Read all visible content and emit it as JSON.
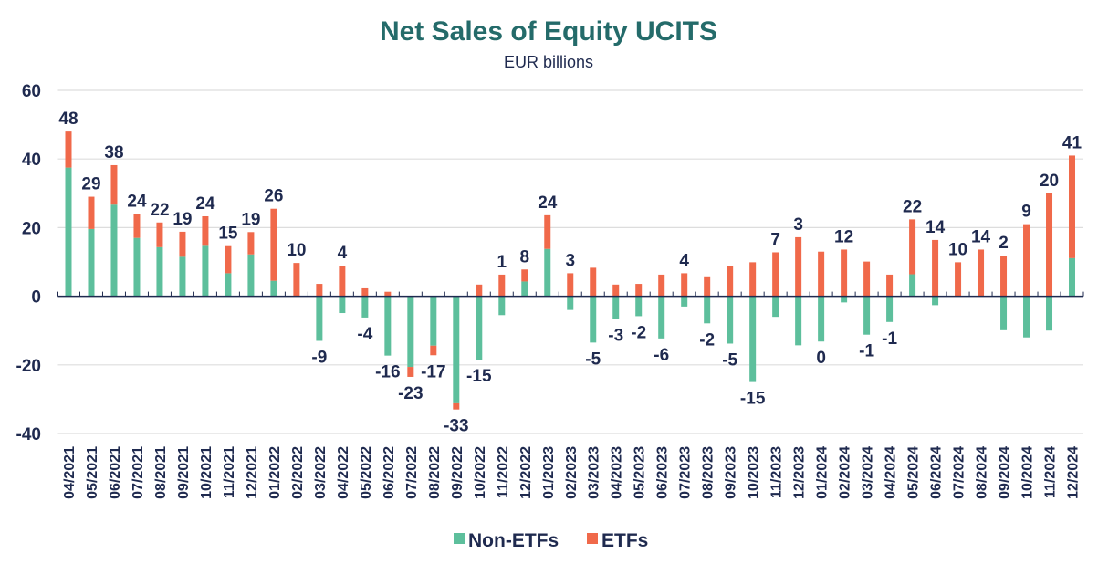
{
  "chart_data": {
    "type": "bar",
    "stacked": true,
    "title": "Net Sales of Equity UCITS",
    "subtitle": "EUR billions",
    "xlabel": "",
    "ylabel": "",
    "ylim": [
      -40,
      60
    ],
    "yticks": [
      60,
      40,
      20,
      0,
      -20,
      -40
    ],
    "grid": true,
    "legend_position": "bottom",
    "categories": [
      "04/2021",
      "05/2021",
      "06/2021",
      "07/2021",
      "08/2021",
      "09/2021",
      "10/2021",
      "11/2021",
      "12/2021",
      "01/2022",
      "02/2022",
      "03/2022",
      "04/2022",
      "05/2022",
      "06/2022",
      "07/2022",
      "08/2022",
      "09/2022",
      "10/2022",
      "11/2022",
      "12/2022",
      "01/2023",
      "02/2023",
      "03/2023",
      "04/2023",
      "05/2023",
      "06/2023",
      "07/2023",
      "08/2023",
      "09/2023",
      "10/2023",
      "11/2023",
      "12/2023",
      "01/2024",
      "02/2024",
      "03/2024",
      "04/2024",
      "05/2024",
      "06/2024",
      "07/2024",
      "08/2024",
      "09/2024",
      "10/2024",
      "11/2024",
      "12/2024"
    ],
    "series": [
      {
        "name": "Non-ETFs",
        "color": "#5dbf9c",
        "values": [
          37.5,
          19.6,
          26.7,
          17.0,
          14.3,
          11.5,
          14.7,
          6.7,
          12.2,
          4.5,
          0,
          -13.0,
          -4.9,
          -6.2,
          -17.3,
          -20.6,
          -14.4,
          -31.2,
          -18.5,
          -5.5,
          4.3,
          13.8,
          -4.0,
          -13.5,
          -6.6,
          -5.8,
          -12.3,
          -3.0,
          -7.9,
          -13.8,
          -25.0,
          -6.0,
          -14.3,
          -13.2,
          -1.8,
          -11.2,
          -7.5,
          6.4,
          -2.6,
          0,
          0,
          -9.9,
          -12.0,
          -10.0,
          11.1
        ]
      },
      {
        "name": "ETFs",
        "color": "#f0694a",
        "values": [
          10.5,
          9.4,
          11.5,
          7.0,
          7.2,
          7.3,
          8.6,
          7.9,
          6.5,
          21.0,
          9.7,
          3.6,
          8.9,
          2.3,
          1.3,
          -2.9,
          -2.8,
          -1.8,
          3.4,
          6.3,
          3.5,
          9.8,
          6.7,
          8.3,
          3.4,
          3.6,
          6.3,
          6.7,
          5.8,
          8.8,
          9.9,
          12.8,
          17.2,
          13.0,
          13.6,
          10.1,
          6.3,
          16.0,
          16.4,
          9.9,
          13.6,
          11.8,
          21.0,
          30.0,
          29.9
        ]
      }
    ],
    "totals_labels": [
      "48",
      "29",
      "38",
      "24",
      "22",
      "19",
      "24",
      "15",
      "19",
      "26",
      "10",
      "-9",
      "4",
      "-4",
      "-16",
      "-23",
      "-17",
      "-33",
      "-15",
      "1",
      "8",
      "24",
      "3",
      "-5",
      "-3",
      "-2",
      "-6",
      "4",
      "-2",
      "-5",
      "-15",
      "7",
      "3",
      "0",
      "12",
      "-1",
      "-1",
      "22",
      "14",
      "10",
      "14",
      "2",
      "9",
      "20",
      "41"
    ]
  }
}
